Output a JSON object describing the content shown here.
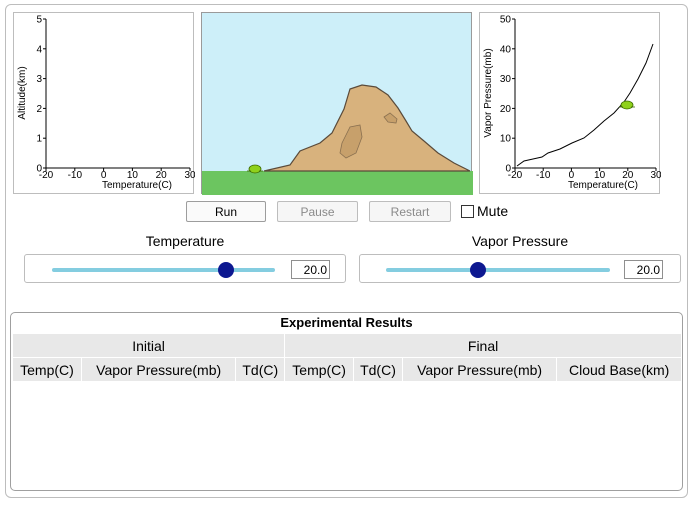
{
  "altitude_plot": {
    "ylabel": "Altitude(km)",
    "xlabel": "Temperature(C)",
    "y_ticks": [
      "0",
      "1",
      "2",
      "3",
      "4",
      "5"
    ],
    "x_ticks": [
      "-20",
      "-10",
      "0",
      "10",
      "20",
      "30"
    ]
  },
  "vapor_plot": {
    "ylabel": "Vapor Pressure(mb)",
    "xlabel": "Temperature(C)",
    "y_ticks": [
      "0",
      "10",
      "20",
      "30",
      "40",
      "50"
    ],
    "x_ticks": [
      "-20",
      "-10",
      "0",
      "10",
      "20",
      "30"
    ]
  },
  "controls": {
    "run": "Run",
    "pause": "Pause",
    "restart": "Restart",
    "mute": "Mute",
    "mute_checked": false
  },
  "sliders": {
    "temperature": {
      "label": "Temperature",
      "value": "20.0",
      "fraction": 0.78
    },
    "vapor_pressure": {
      "label": "Vapor Pressure",
      "value": "20.0",
      "fraction": 0.41
    }
  },
  "results": {
    "title": "Experimental Results",
    "group_initial": "Initial",
    "group_final": "Final",
    "columns": [
      "Temp(C)",
      "Vapor Pressure(mb)",
      "Td(C)",
      "Temp(C)",
      "Td(C)",
      "Vapor Pressure(mb)",
      "Cloud Base(km)"
    ]
  },
  "colors": {
    "sky": "#cdeff9",
    "ground": "#6cc560",
    "mountain": "#d8b27d",
    "slider_thumb": "#0d1890",
    "slider_track": "#84cde0"
  }
}
